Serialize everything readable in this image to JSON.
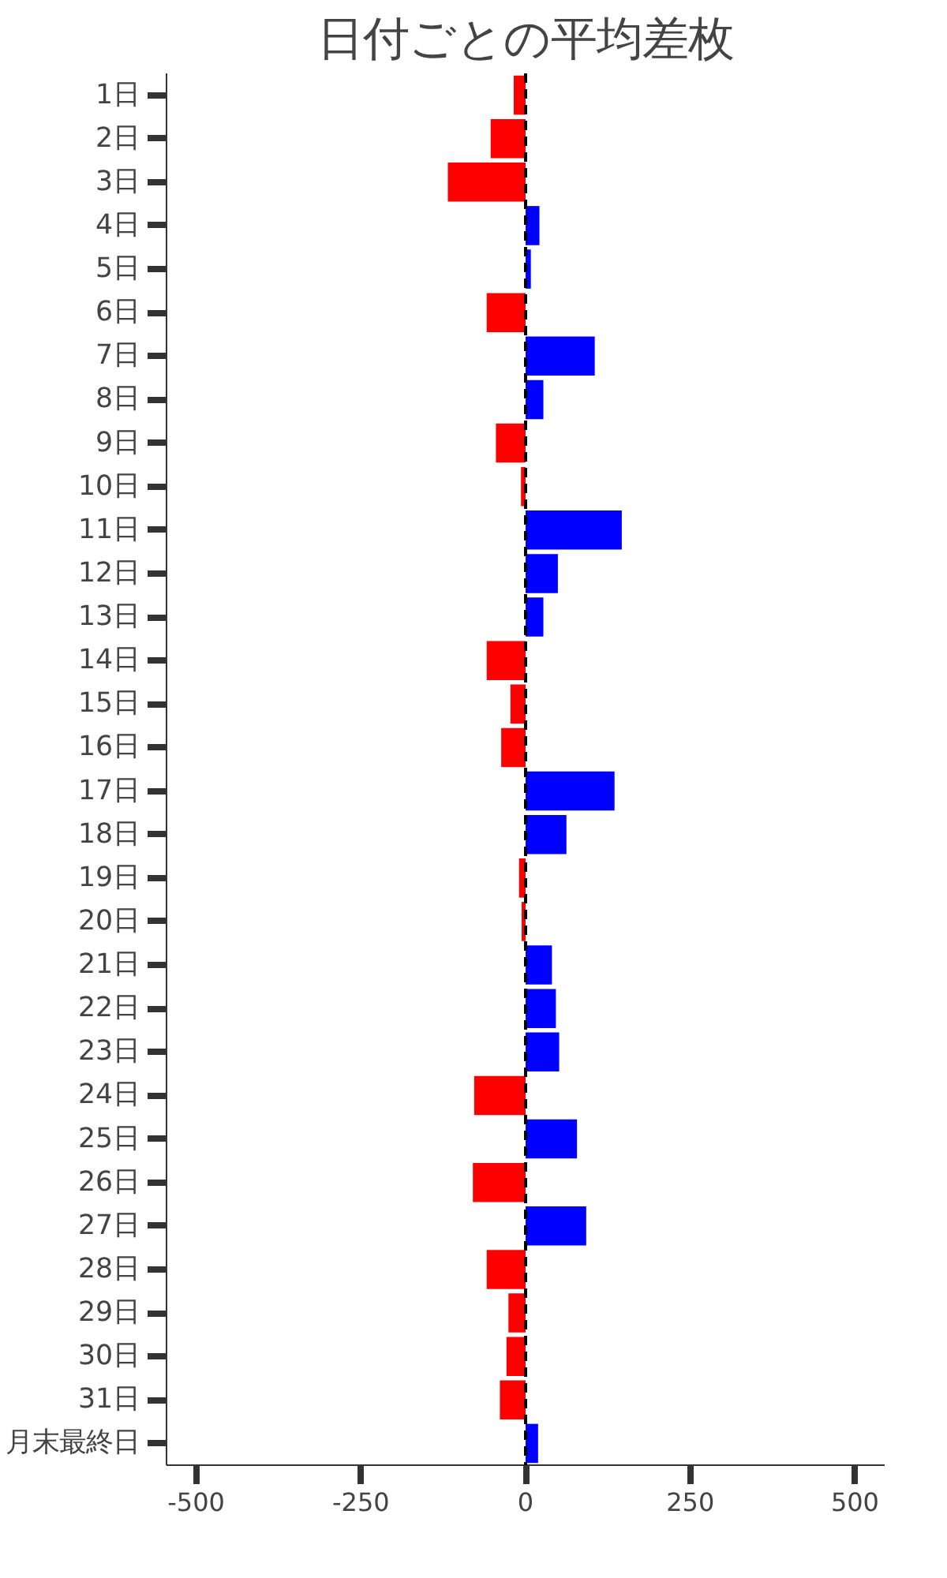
{
  "chart_data": {
    "type": "bar",
    "orientation": "horizontal",
    "title": "日付ごとの平均差枚",
    "categories": [
      "1日",
      "2日",
      "3日",
      "4日",
      "5日",
      "6日",
      "7日",
      "8日",
      "9日",
      "10日",
      "11日",
      "12日",
      "13日",
      "14日",
      "15日",
      "16日",
      "17日",
      "18日",
      "19日",
      "20日",
      "21日",
      "22日",
      "23日",
      "24日",
      "25日",
      "26日",
      "27日",
      "28日",
      "29日",
      "30日",
      "31日",
      "月末最終日"
    ],
    "values": [
      -18,
      -53,
      -118,
      21,
      8,
      -59,
      105,
      27,
      -45,
      -7,
      146,
      49,
      27,
      -59,
      -23,
      -37,
      135,
      62,
      -10,
      -6,
      40,
      46,
      51,
      -78,
      78,
      -80,
      92,
      -59,
      -26,
      -29,
      -39,
      19
    ],
    "colors": [
      "#ff0000",
      "#ff0000",
      "#ff0000",
      "#0000ff",
      "#0000ff",
      "#ff0000",
      "#0000ff",
      "#0000ff",
      "#ff0000",
      "#ff0000",
      "#0000ff",
      "#0000ff",
      "#0000ff",
      "#ff0000",
      "#ff0000",
      "#ff0000",
      "#0000ff",
      "#0000ff",
      "#ff0000",
      "#ff0000",
      "#0000ff",
      "#0000ff",
      "#0000ff",
      "#ff0000",
      "#0000ff",
      "#ff0000",
      "#0000ff",
      "#ff0000",
      "#ff0000",
      "#ff0000",
      "#ff0000",
      "#0000ff"
    ],
    "xlim": [
      -545,
      545
    ],
    "xticks": [
      -500,
      -250,
      0,
      250,
      500
    ],
    "ref_lines": [
      {
        "axis": "x",
        "value": 0,
        "color": "#000000",
        "line_style": "dashed"
      }
    ],
    "grid": false
  }
}
